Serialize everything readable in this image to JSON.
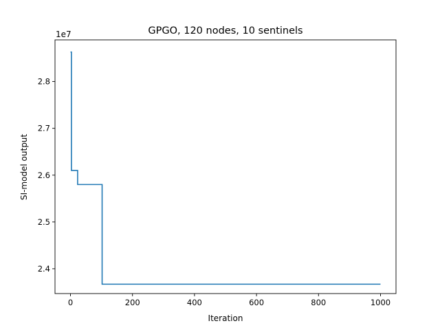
{
  "chart_data": {
    "type": "line",
    "title": "GPGO, 120 nodes, 10 sentinels",
    "xlabel": "Iteration",
    "ylabel": "SI-model output",
    "y_offset_label": "1e7",
    "xlim": [
      -50,
      1050
    ],
    "ylim": [
      2.347,
      2.889
    ],
    "xticks": [
      0,
      200,
      400,
      600,
      800,
      1000
    ],
    "xtick_labels": [
      "0",
      "200",
      "400",
      "600",
      "800",
      "1000"
    ],
    "yticks": [
      2.4,
      2.5,
      2.6,
      2.7,
      2.8
    ],
    "ytick_labels": [
      "2.4",
      "2.5",
      "2.6",
      "2.7",
      "2.8"
    ],
    "grid": false,
    "series": [
      {
        "color": "#1f77b4",
        "step": true,
        "x": [
          0,
          3,
          3,
          23,
          23,
          102,
          102,
          1000
        ],
        "y": [
          2.863,
          2.863,
          2.61,
          2.61,
          2.58,
          2.58,
          2.367,
          2.367
        ]
      }
    ]
  }
}
